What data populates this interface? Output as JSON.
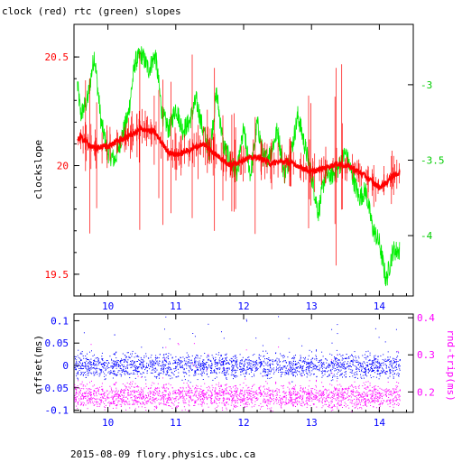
{
  "title": "clock (red) rtc (green) slopes",
  "footer": "2015-08-09 flory.physics.ubc.ca",
  "colors": {
    "red": "#ff0000",
    "green": "#00ee00",
    "blue": "#0000ff",
    "magenta": "#ff00ff",
    "axis": "#000000"
  },
  "chart_data": [
    {
      "type": "line",
      "title": "clock (red) rtc (green) slopes",
      "xlim": [
        9.5,
        14.5
      ],
      "x_ticks": [
        "10",
        "11",
        "12",
        "13",
        "14"
      ],
      "ylabel_left": "clockslope",
      "ylim_left": [
        19.4,
        20.65
      ],
      "y_ticks_left": [
        "19.5",
        "20",
        "20.5"
      ],
      "ylim_right": [
        -4.4,
        -2.6
      ],
      "y_ticks_right": [
        "-3",
        "-3.5",
        "-4"
      ],
      "series": [
        {
          "axis": "left",
          "color": "#ff0000",
          "x": [
            9.55,
            9.6,
            9.8,
            10.0,
            10.2,
            10.4,
            10.5,
            10.7,
            10.8,
            10.9,
            11.0,
            11.2,
            11.4,
            11.6,
            11.8,
            12.0,
            12.2,
            12.4,
            12.6,
            12.8,
            13.0,
            13.2,
            13.4,
            13.6,
            13.8,
            14.0,
            14.1,
            14.2,
            14.3
          ],
          "values": [
            20.12,
            20.13,
            20.08,
            20.09,
            20.12,
            20.15,
            20.17,
            20.15,
            20.1,
            20.06,
            20.05,
            20.07,
            20.1,
            20.05,
            20.0,
            20.03,
            20.04,
            20.01,
            20.02,
            20.0,
            19.97,
            19.99,
            20.01,
            19.99,
            19.95,
            19.9,
            19.92,
            19.95,
            19.97
          ]
        },
        {
          "axis": "right",
          "color": "#00ee00",
          "x": [
            9.55,
            9.6,
            9.7,
            9.8,
            9.9,
            10.0,
            10.1,
            10.2,
            10.3,
            10.4,
            10.5,
            10.6,
            10.7,
            10.8,
            10.9,
            11.0,
            11.1,
            11.2,
            11.3,
            11.4,
            11.5,
            11.6,
            11.7,
            11.8,
            11.9,
            12.0,
            12.1,
            12.2,
            12.3,
            12.4,
            12.5,
            12.6,
            12.7,
            12.8,
            12.9,
            13.0,
            13.1,
            13.2,
            13.3,
            13.4,
            13.5,
            13.6,
            13.7,
            13.8,
            13.9,
            14.0,
            14.1,
            14.2,
            14.3
          ],
          "values": [
            -3.0,
            -3.2,
            -3.1,
            -2.8,
            -3.25,
            -3.45,
            -3.5,
            -3.35,
            -3.2,
            -2.85,
            -2.8,
            -2.9,
            -2.8,
            -3.2,
            -3.3,
            -3.15,
            -3.3,
            -3.25,
            -3.1,
            -3.3,
            -3.45,
            -3.05,
            -3.4,
            -3.5,
            -3.6,
            -3.3,
            -3.6,
            -3.25,
            -3.5,
            -3.45,
            -3.3,
            -3.6,
            -3.45,
            -3.2,
            -3.4,
            -3.6,
            -3.85,
            -3.6,
            -3.6,
            -3.55,
            -3.45,
            -3.6,
            -3.75,
            -3.7,
            -3.95,
            -4.05,
            -4.3,
            -4.1,
            -4.1
          ]
        }
      ]
    },
    {
      "type": "scatter",
      "xlim": [
        9.5,
        14.5
      ],
      "x_ticks": [
        "10",
        "11",
        "12",
        "13",
        "14"
      ],
      "ylabel_left": "offset(ms)",
      "ylim_left": [
        -0.105,
        0.115
      ],
      "y_ticks_left": [
        "0.1",
        "0.05",
        "0",
        "-0.05",
        "-0.1"
      ],
      "ylabel_right": "rnd-trip(ms)",
      "ylim_right": [
        0.145,
        0.41
      ],
      "y_ticks_right": [
        "0.4",
        "0.3",
        "0.2"
      ],
      "series": [
        {
          "axis": "left",
          "color": "#0000ff",
          "x_range": [
            9.5,
            14.3
          ],
          "center": 0.0,
          "spread": 0.025
        },
        {
          "axis": "right",
          "color": "#ff00ff",
          "x_range": [
            9.5,
            14.3
          ],
          "center": 0.19,
          "spread": 0.03
        }
      ]
    }
  ]
}
